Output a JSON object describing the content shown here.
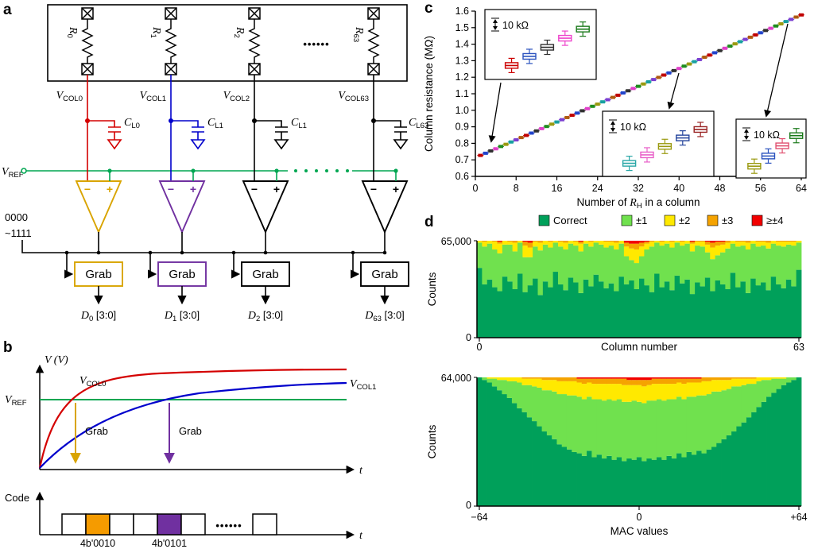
{
  "panels": {
    "a": "a",
    "b": "b",
    "c": "c",
    "d": "d"
  },
  "sym": {
    "V": "V",
    "C": "C",
    "R": "R",
    "D": "D",
    "t": "t",
    "minus": "−",
    "plus": "+"
  },
  "panel_a": {
    "resistor_subs": [
      "0",
      "1",
      "2",
      "63"
    ],
    "dots": "••••••",
    "vref_sub": "REF",
    "cols": [
      {
        "v_sub": "COL0",
        "c_sub": "L0",
        "d_sub": "0"
      },
      {
        "v_sub": "COL1",
        "c_sub": "L1",
        "d_sub": "1"
      },
      {
        "v_sub": "COL2",
        "c_sub": "L1",
        "d_sub": "2"
      },
      {
        "v_sub": "COL63",
        "c_sub": "L63",
        "d_sub": "63"
      }
    ],
    "code_line1": "0000",
    "code_line2": "~1111",
    "grab": "Grab",
    "d_suffix": " [3:0]"
  },
  "panel_b": {
    "v_axis": "V (V)",
    "vref_sub": "REF",
    "vcol0_sub": "COL0",
    "vcol1_sub": "COL1",
    "grab": "Grab",
    "code_axis": "Code",
    "code_val1": "4b'0010",
    "code_val2": "4b'0101",
    "dots": "••••••"
  },
  "colors": {
    "wire_red": "#d40000",
    "wire_blue": "#0000cc",
    "vref_green": "#00a651",
    "comp_gold": "#d9a400",
    "comp_purple": "#7030a0",
    "code_orange": "#f59b00",
    "correct_green": "#00a05a",
    "pm1_green": "#70e14e",
    "pm2_yellow": "#ffe900",
    "pm3_orange": "#f5a300",
    "ge4_red": "#f20000"
  },
  "chart_data": [
    {
      "id": "column_resistance",
      "type": "scatter",
      "ylabel": "Column resistance (MΩ)",
      "xlabel_parts": [
        "Number of ",
        "R",
        "H",
        " in a column"
      ],
      "xlim": [
        0,
        64
      ],
      "ylim": [
        0.6,
        1.6
      ],
      "xticks": [
        "0",
        "8",
        "16",
        "24",
        "32",
        "40",
        "48",
        "56",
        "64"
      ],
      "yticks": [
        "0.6",
        "0.7",
        "0.8",
        "0.9",
        "1.0",
        "1.1",
        "1.2",
        "1.3",
        "1.4",
        "1.5",
        "1.6"
      ],
      "x": [
        1,
        2,
        3,
        4,
        5,
        6,
        7,
        8,
        9,
        10,
        11,
        12,
        13,
        14,
        15,
        16,
        17,
        18,
        19,
        20,
        21,
        22,
        23,
        24,
        25,
        26,
        27,
        28,
        29,
        30,
        31,
        32,
        33,
        34,
        35,
        36,
        37,
        38,
        39,
        40,
        41,
        42,
        43,
        44,
        45,
        46,
        47,
        48,
        49,
        50,
        51,
        52,
        53,
        54,
        55,
        56,
        57,
        58,
        59,
        60,
        61,
        62,
        63,
        64
      ],
      "y": [
        0.727,
        0.74,
        0.754,
        0.767,
        0.781,
        0.794,
        0.808,
        0.821,
        0.835,
        0.848,
        0.862,
        0.875,
        0.889,
        0.902,
        0.916,
        0.929,
        0.943,
        0.956,
        0.97,
        0.983,
        0.997,
        1.01,
        1.024,
        1.037,
        1.051,
        1.064,
        1.078,
        1.091,
        1.105,
        1.118,
        1.132,
        1.145,
        1.159,
        1.172,
        1.186,
        1.199,
        1.213,
        1.226,
        1.24,
        1.253,
        1.267,
        1.28,
        1.294,
        1.307,
        1.321,
        1.334,
        1.348,
        1.361,
        1.375,
        1.388,
        1.402,
        1.415,
        1.429,
        1.442,
        1.456,
        1.469,
        1.483,
        1.496,
        1.51,
        1.523,
        1.537,
        1.55,
        1.564,
        1.577
      ],
      "palette": [
        "#c00000",
        "#2244cc",
        "#303030",
        "#e040c8",
        "#1f8c1f",
        "#9a9a10",
        "#18a0a0",
        "#7a3fd0",
        "#b05a10"
      ],
      "insets": [
        {
          "scale": "10 kΩ",
          "box_colors": [
            "#cc0000",
            "#2a52be",
            "#303030",
            "#ee44cc",
            "#1a7a1a"
          ]
        },
        {
          "scale": "10 kΩ",
          "box_colors": [
            "#2aa7a7",
            "#e85fc8",
            "#9a9a10",
            "#24449c",
            "#992222"
          ]
        },
        {
          "scale": "10 kΩ",
          "box_colors": [
            "#9a9a10",
            "#2a52be",
            "#e05070",
            "#1a7a1a"
          ]
        }
      ]
    },
    {
      "id": "error_by_column",
      "type": "stacked-bar",
      "ylabel": "Counts",
      "xlabel": "Column number",
      "ymax": 65000,
      "ymax_label": "65,000",
      "ymin_label": "0",
      "xtick_labels": [
        "0",
        "63"
      ],
      "n_bars": 64,
      "unit": "fraction of 65,000 counts per column",
      "series": [
        {
          "name": "Correct",
          "color": "#00a05a",
          "values": [
            0.72,
            0.55,
            0.6,
            0.52,
            0.48,
            0.63,
            0.58,
            0.5,
            0.66,
            0.47,
            0.54,
            0.61,
            0.44,
            0.58,
            0.52,
            0.68,
            0.55,
            0.49,
            0.62,
            0.57,
            0.46,
            0.6,
            0.53,
            0.65,
            0.58,
            0.51,
            0.56,
            0.48,
            0.63,
            0.55,
            0.59,
            0.5,
            0.61,
            0.54,
            0.47,
            0.66,
            0.52,
            0.58,
            0.49,
            0.64,
            0.56,
            0.6,
            0.45,
            0.57,
            0.53,
            0.62,
            0.48,
            0.59,
            0.55,
            0.5,
            0.67,
            0.52,
            0.58,
            0.46,
            0.61,
            0.54,
            0.57,
            0.49,
            0.63,
            0.55,
            0.51,
            0.6,
            0.53,
            0.7
          ]
        },
        {
          "name": "±1",
          "color": "#70e14e",
          "values": [
            0.26,
            0.39,
            0.37,
            0.39,
            0.39,
            0.33,
            0.38,
            0.39,
            0.32,
            0.36,
            0.29,
            0.33,
            0.46,
            0.38,
            0.41,
            0.3,
            0.39,
            0.42,
            0.35,
            0.38,
            0.43,
            0.37,
            0.41,
            0.33,
            0.38,
            0.42,
            0.39,
            0.43,
            0.34,
            0.29,
            0.21,
            0.27,
            0.23,
            0.37,
            0.47,
            0.32,
            0.43,
            0.39,
            0.44,
            0.34,
            0.39,
            0.37,
            0.44,
            0.38,
            0.41,
            0.26,
            0.33,
            0.26,
            0.33,
            0.42,
            0.3,
            0.42,
            0.37,
            0.45,
            0.36,
            0.4,
            0.38,
            0.43,
            0.34,
            0.4,
            0.43,
            0.36,
            0.42,
            0.28
          ]
        },
        {
          "name": "±2",
          "color": "#ffe900",
          "values": [
            0.02,
            0.05,
            0.03,
            0.08,
            0.1,
            0.04,
            0.03,
            0.09,
            0.02,
            0.12,
            0.1,
            0.05,
            0.08,
            0.04,
            0.06,
            0.02,
            0.05,
            0.07,
            0.03,
            0.04,
            0.08,
            0.03,
            0.05,
            0.02,
            0.04,
            0.06,
            0.04,
            0.07,
            0.03,
            0.1,
            0.12,
            0.14,
            0.1,
            0.06,
            0.05,
            0.02,
            0.04,
            0.03,
            0.06,
            0.02,
            0.04,
            0.03,
            0.08,
            0.04,
            0.05,
            0.08,
            0.12,
            0.1,
            0.08,
            0.06,
            0.03,
            0.05,
            0.04,
            0.07,
            0.03,
            0.05,
            0.04,
            0.06,
            0.03,
            0.04,
            0.05,
            0.03,
            0.04,
            0.02
          ]
        },
        {
          "name": "±3",
          "color": "#f5a300",
          "values": [
            0,
            0.01,
            0,
            0.01,
            0.02,
            0,
            0.01,
            0.02,
            0,
            0.04,
            0.05,
            0.01,
            0.02,
            0,
            0.01,
            0,
            0.01,
            0.02,
            0,
            0.01,
            0.02,
            0,
            0.01,
            0,
            0,
            0.01,
            0.01,
            0.02,
            0,
            0.04,
            0.05,
            0.06,
            0.04,
            0.02,
            0.01,
            0,
            0.01,
            0,
            0.01,
            0,
            0.01,
            0,
            0.02,
            0.01,
            0.01,
            0.03,
            0.05,
            0.04,
            0.03,
            0.02,
            0,
            0.01,
            0.01,
            0.02,
            0,
            0.01,
            0.01,
            0.02,
            0,
            0.01,
            0.01,
            0.01,
            0.01,
            0
          ]
        },
        {
          "name": "≥±4",
          "color": "#f20000",
          "values": [
            0,
            0,
            0,
            0,
            0.01,
            0,
            0,
            0,
            0,
            0.01,
            0.02,
            0,
            0,
            0,
            0,
            0,
            0,
            0,
            0,
            0,
            0.01,
            0,
            0,
            0,
            0,
            0,
            0,
            0,
            0,
            0.02,
            0.03,
            0.03,
            0.02,
            0.01,
            0,
            0,
            0,
            0,
            0,
            0,
            0,
            0,
            0.01,
            0,
            0,
            0.01,
            0.02,
            0.01,
            0.01,
            0,
            0,
            0,
            0,
            0,
            0,
            0,
            0,
            0,
            0,
            0,
            0,
            0,
            0,
            0
          ]
        }
      ]
    },
    {
      "id": "error_by_mac_value",
      "type": "stacked-bar",
      "ylabel": "Counts",
      "xlabel": "MAC values",
      "ymax": 64000,
      "ymax_label": "64,000",
      "ymin_label": "0",
      "xtick_labels": [
        "−64",
        "0",
        "+64"
      ],
      "x_range": [
        -64,
        64
      ],
      "x_step": 2,
      "n_bars": 65,
      "unit": "fraction of 64,000 counts per MAC value",
      "series": [
        {
          "name": "Correct",
          "color": "#00a05a",
          "values": [
            1.0,
            0.98,
            0.96,
            0.93,
            0.9,
            0.87,
            0.84,
            0.8,
            0.76,
            0.73,
            0.69,
            0.66,
            0.62,
            0.58,
            0.55,
            0.52,
            0.48,
            0.46,
            0.44,
            0.42,
            0.41,
            0.39,
            0.43,
            0.38,
            0.4,
            0.37,
            0.39,
            0.36,
            0.38,
            0.35,
            0.37,
            0.36,
            0.38,
            0.35,
            0.37,
            0.36,
            0.38,
            0.36,
            0.39,
            0.37,
            0.41,
            0.38,
            0.42,
            0.4,
            0.43,
            0.41,
            0.44,
            0.46,
            0.49,
            0.52,
            0.55,
            0.58,
            0.62,
            0.65,
            0.69,
            0.73,
            0.77,
            0.81,
            0.85,
            0.88,
            0.91,
            0.94,
            0.96,
            0.98,
            1.0
          ]
        },
        {
          "name": "±1",
          "color": "#70e14e",
          "values": [
            0,
            0.02,
            0.03,
            0.06,
            0.08,
            0.11,
            0.13,
            0.17,
            0.2,
            0.21,
            0.25,
            0.27,
            0.3,
            0.32,
            0.35,
            0.37,
            0.39,
            0.41,
            0.42,
            0.44,
            0.44,
            0.44,
            0.42,
            0.45,
            0.43,
            0.45,
            0.44,
            0.46,
            0.45,
            0.46,
            0.44,
            0.46,
            0.43,
            0.45,
            0.45,
            0.46,
            0.45,
            0.46,
            0.44,
            0.46,
            0.44,
            0.45,
            0.43,
            0.45,
            0.43,
            0.45,
            0.43,
            0.43,
            0.4,
            0.38,
            0.36,
            0.35,
            0.31,
            0.29,
            0.26,
            0.22,
            0.2,
            0.17,
            0.13,
            0.11,
            0.08,
            0.05,
            0.04,
            0.02,
            0
          ]
        },
        {
          "name": "±2",
          "color": "#ffe900",
          "values": [
            0,
            0,
            0.01,
            0.01,
            0.02,
            0.02,
            0.03,
            0.03,
            0.04,
            0.05,
            0.05,
            0.06,
            0.07,
            0.08,
            0.08,
            0.09,
            0.1,
            0.1,
            0.11,
            0.11,
            0.11,
            0.12,
            0.11,
            0.12,
            0.12,
            0.13,
            0.12,
            0.13,
            0.12,
            0.13,
            0.13,
            0.12,
            0.13,
            0.13,
            0.12,
            0.13,
            0.12,
            0.13,
            0.12,
            0.12,
            0.11,
            0.12,
            0.11,
            0.11,
            0.1,
            0.11,
            0.1,
            0.09,
            0.09,
            0.08,
            0.07,
            0.06,
            0.06,
            0.05,
            0.04,
            0.04,
            0.03,
            0.02,
            0.02,
            0.01,
            0.01,
            0.01,
            0,
            0,
            0
          ]
        },
        {
          "name": "±3",
          "color": "#f5a300",
          "values": [
            0,
            0,
            0,
            0,
            0,
            0,
            0,
            0,
            0,
            0.01,
            0.01,
            0.01,
            0.01,
            0.02,
            0.02,
            0.02,
            0.03,
            0.03,
            0.03,
            0.03,
            0.03,
            0.04,
            0.03,
            0.04,
            0.04,
            0.04,
            0.04,
            0.04,
            0.04,
            0.05,
            0.04,
            0.04,
            0.04,
            0.05,
            0.04,
            0.04,
            0.04,
            0.04,
            0.04,
            0.04,
            0.03,
            0.04,
            0.03,
            0.03,
            0.03,
            0.03,
            0.03,
            0.02,
            0.02,
            0.02,
            0.02,
            0.01,
            0.01,
            0.01,
            0.01,
            0.01,
            0,
            0,
            0,
            0,
            0,
            0,
            0,
            0,
            0
          ]
        },
        {
          "name": "≥±4",
          "color": "#f20000",
          "values": [
            0,
            0,
            0,
            0,
            0,
            0,
            0,
            0,
            0,
            0,
            0,
            0,
            0,
            0,
            0,
            0,
            0,
            0,
            0,
            0,
            0.01,
            0.01,
            0.01,
            0.01,
            0.01,
            0.01,
            0.01,
            0.01,
            0.01,
            0.01,
            0.02,
            0.02,
            0.02,
            0.02,
            0.02,
            0.01,
            0.01,
            0.01,
            0.01,
            0.01,
            0.01,
            0.01,
            0.01,
            0.01,
            0.01,
            0,
            0,
            0,
            0,
            0,
            0,
            0,
            0,
            0,
            0,
            0,
            0,
            0,
            0,
            0,
            0,
            0,
            0,
            0,
            0
          ]
        }
      ]
    }
  ]
}
